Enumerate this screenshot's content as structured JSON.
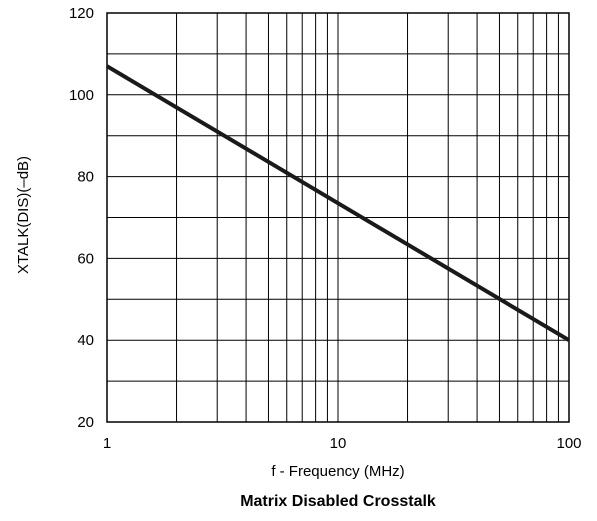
{
  "chart_data": {
    "type": "line",
    "title": "Matrix Disabled Crosstalk",
    "xlabel": "f -  Frequency (MHz)",
    "ylabel": "XTALK(DIS)(–dB)",
    "x_scale": "log",
    "xlim": [
      1,
      100
    ],
    "ylim": [
      20,
      120
    ],
    "x_ticks": [
      1,
      10,
      100
    ],
    "y_ticks": [
      20,
      40,
      60,
      80,
      100,
      120
    ],
    "grid": true,
    "series": [
      {
        "x": [
          1,
          100
        ],
        "y": [
          107,
          40
        ]
      }
    ]
  }
}
